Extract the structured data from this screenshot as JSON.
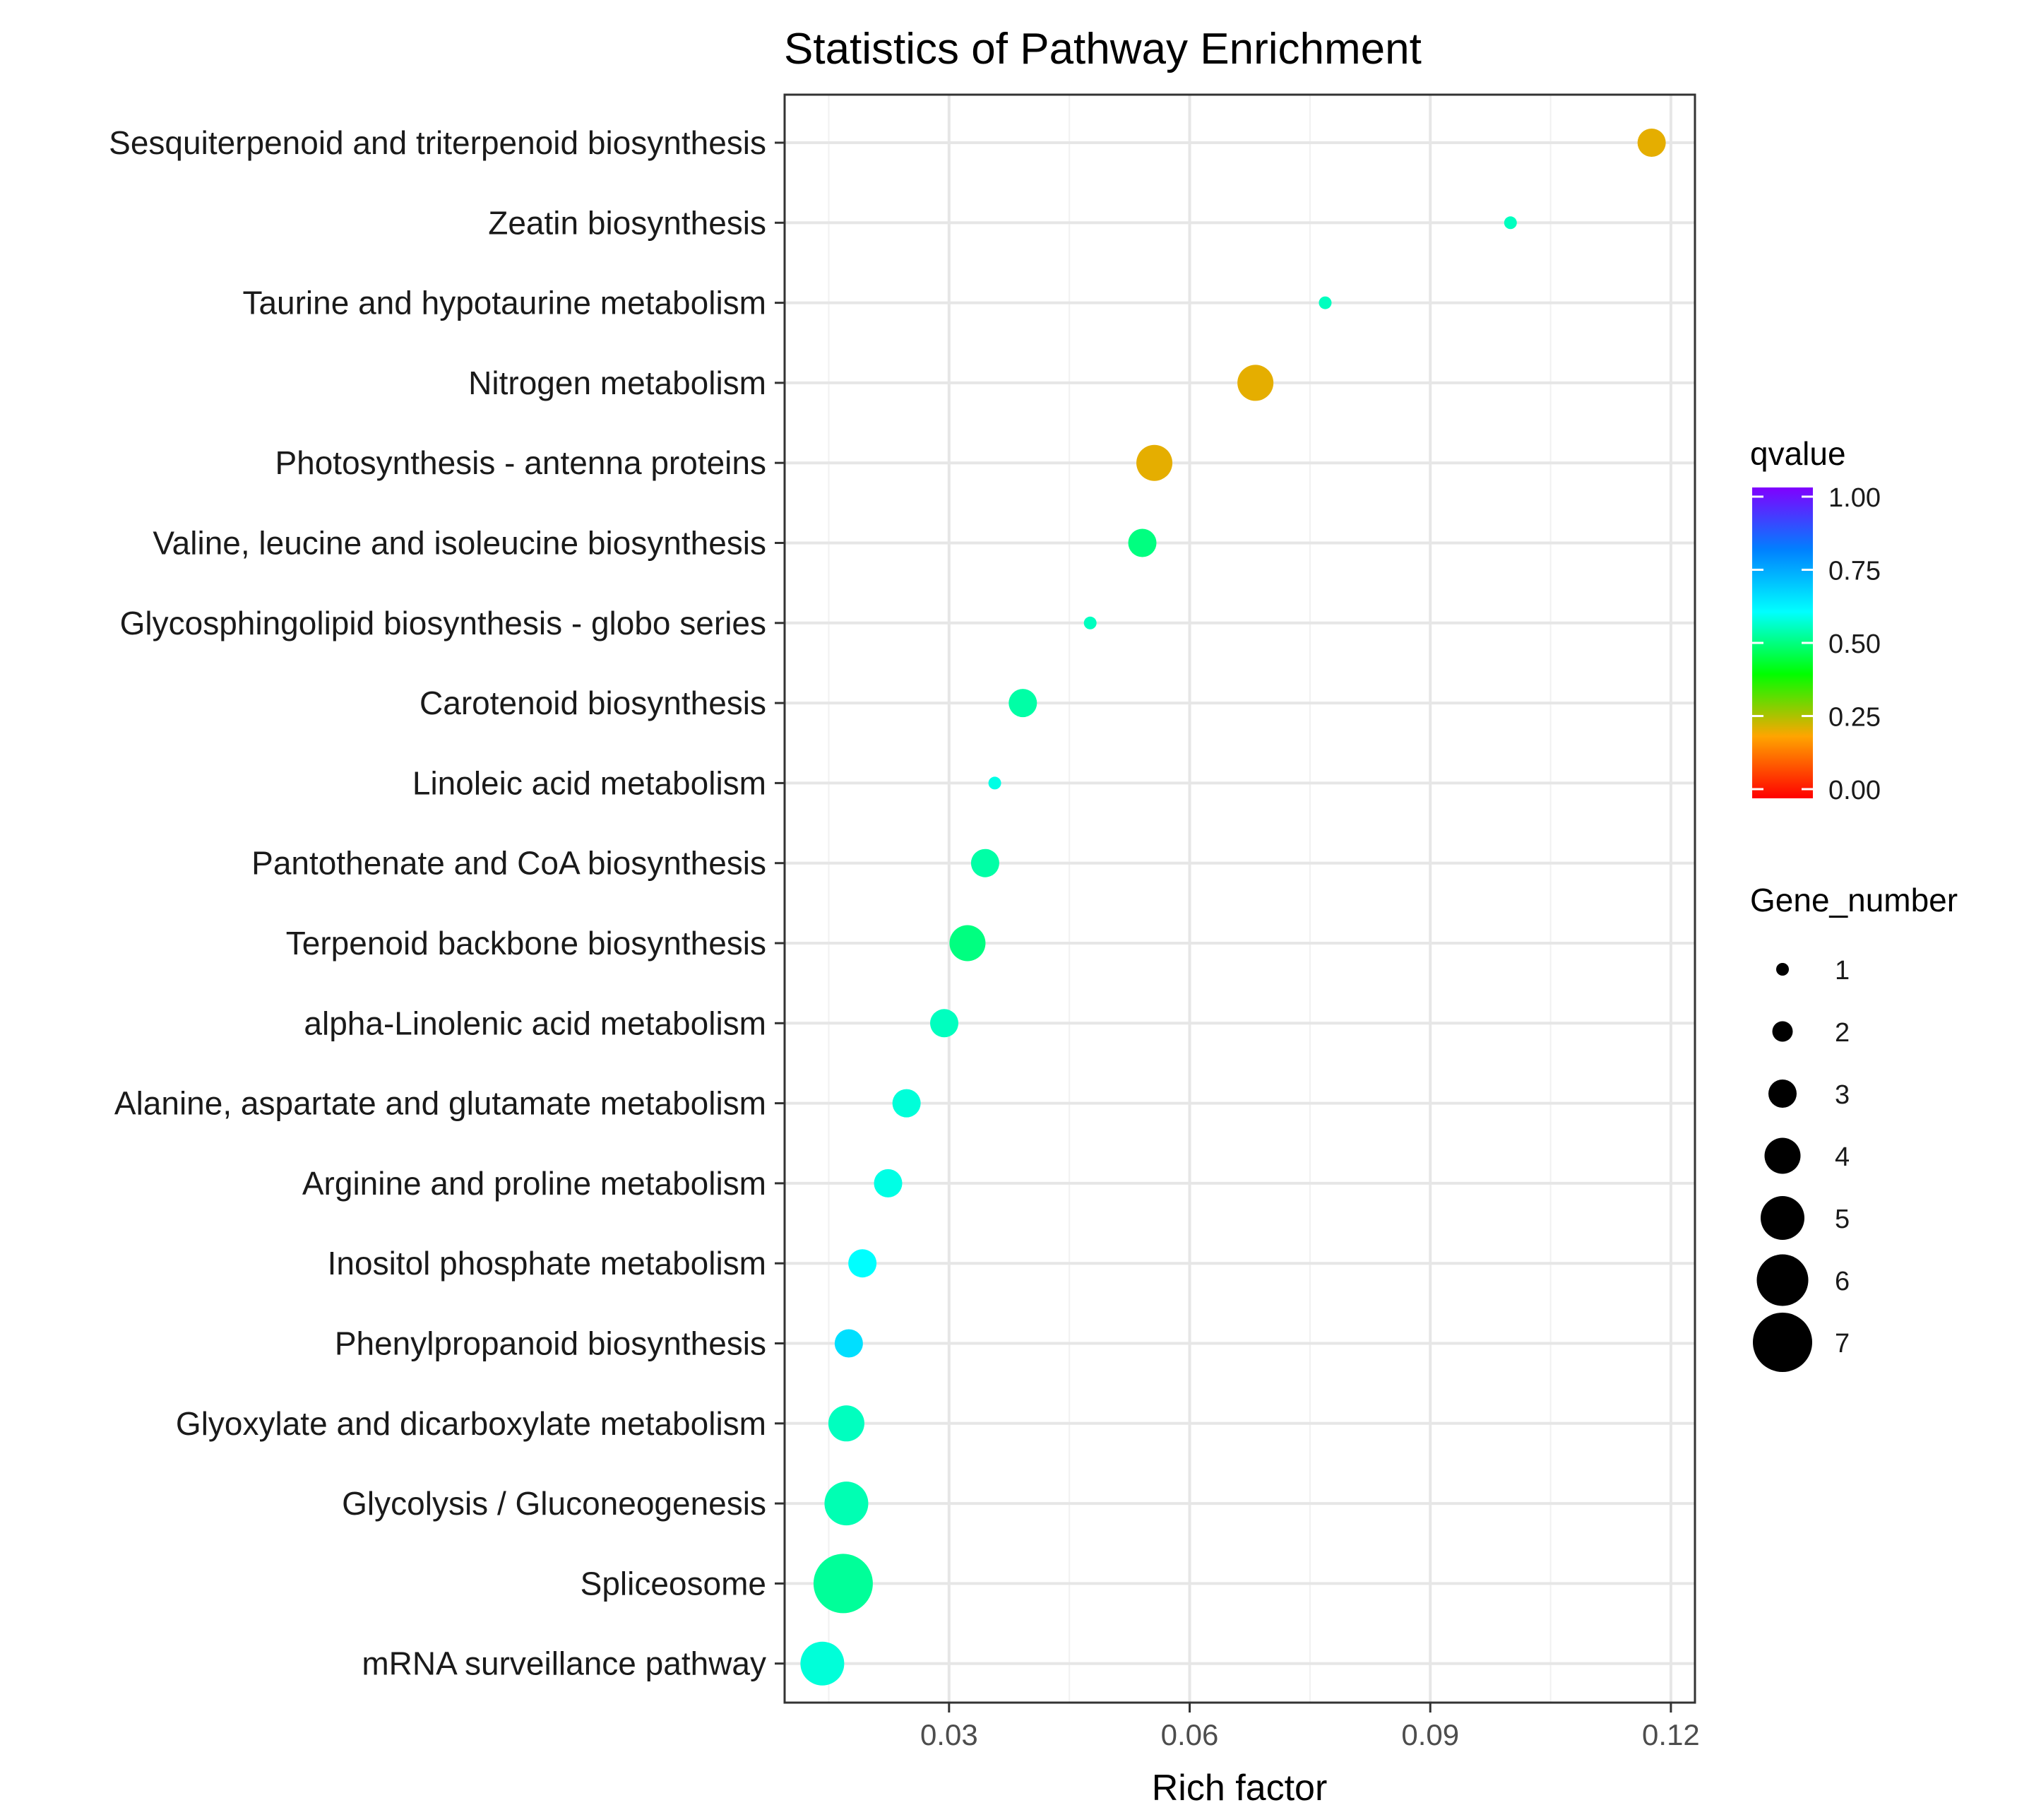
{
  "chart_data": {
    "type": "scatter",
    "title": "Statistics of Pathway Enrichment",
    "xlabel": "Rich factor",
    "ylabel": "",
    "xlim": [
      0.0095,
      0.123
    ],
    "xticks": [
      0.03,
      0.06,
      0.09,
      0.12
    ],
    "xtick_labels": [
      "0.03",
      "0.06",
      "0.09",
      "0.12"
    ],
    "grid": true,
    "categories": [
      "Sesquiterpenoid and triterpenoid biosynthesis",
      "Zeatin biosynthesis",
      "Taurine and hypotaurine metabolism",
      "Nitrogen metabolism",
      "Photosynthesis - antenna proteins",
      "Valine, leucine and isoleucine biosynthesis",
      "Glycosphingolipid biosynthesis - globo series",
      "Carotenoid biosynthesis",
      "Linoleic acid metabolism",
      "Pantothenate and CoA biosynthesis",
      "Terpenoid backbone biosynthesis",
      "alpha-Linolenic acid metabolism",
      "Alanine, aspartate and glutamate metabolism",
      "Arginine and proline metabolism",
      "Inositol phosphate metabolism",
      "Phenylpropanoid biosynthesis",
      "Glyoxylate and dicarboxylate metabolism",
      "Glycolysis / Gluconeogenesis",
      "Spliceosome",
      "mRNA surveillance pathway"
    ],
    "points": [
      {
        "pathway": "Sesquiterpenoid and triterpenoid biosynthesis",
        "rich_factor": 0.1176,
        "gene_number": 3,
        "qvalue": 0.22
      },
      {
        "pathway": "Zeatin biosynthesis",
        "rich_factor": 0.1,
        "gene_number": 1,
        "qvalue": 0.55
      },
      {
        "pathway": "Taurine and hypotaurine metabolism",
        "rich_factor": 0.0769,
        "gene_number": 1,
        "qvalue": 0.55
      },
      {
        "pathway": "Nitrogen metabolism",
        "rich_factor": 0.0682,
        "gene_number": 4,
        "qvalue": 0.22
      },
      {
        "pathway": "Photosynthesis - antenna proteins",
        "rich_factor": 0.0556,
        "gene_number": 4,
        "qvalue": 0.22
      },
      {
        "pathway": "Valine, leucine and isoleucine biosynthesis",
        "rich_factor": 0.0541,
        "gene_number": 3,
        "qvalue": 0.5
      },
      {
        "pathway": "Glycosphingolipid biosynthesis - globo series",
        "rich_factor": 0.0476,
        "gene_number": 1,
        "qvalue": 0.55
      },
      {
        "pathway": "Carotenoid biosynthesis",
        "rich_factor": 0.0392,
        "gene_number": 3,
        "qvalue": 0.53
      },
      {
        "pathway": "Linoleic acid metabolism",
        "rich_factor": 0.0357,
        "gene_number": 1,
        "qvalue": 0.58
      },
      {
        "pathway": "Pantothenate and CoA biosynthesis",
        "rich_factor": 0.0345,
        "gene_number": 3,
        "qvalue": 0.53
      },
      {
        "pathway": "Terpenoid backbone biosynthesis",
        "rich_factor": 0.0323,
        "gene_number": 4,
        "qvalue": 0.5
      },
      {
        "pathway": "alpha-Linolenic acid metabolism",
        "rich_factor": 0.0294,
        "gene_number": 3,
        "qvalue": 0.55
      },
      {
        "pathway": "Alanine, aspartate and glutamate metabolism",
        "rich_factor": 0.0247,
        "gene_number": 3,
        "qvalue": 0.57
      },
      {
        "pathway": "Arginine and proline metabolism",
        "rich_factor": 0.0224,
        "gene_number": 3,
        "qvalue": 0.58
      },
      {
        "pathway": "Inositol phosphate metabolism",
        "rich_factor": 0.0192,
        "gene_number": 3,
        "qvalue": 0.6
      },
      {
        "pathway": "Phenylpropanoid biosynthesis",
        "rich_factor": 0.0175,
        "gene_number": 3,
        "qvalue": 0.65
      },
      {
        "pathway": "Glyoxylate and dicarboxylate metabolism",
        "rich_factor": 0.0172,
        "gene_number": 4,
        "qvalue": 0.55
      },
      {
        "pathway": "Glycolysis / Gluconeogenesis",
        "rich_factor": 0.0172,
        "gene_number": 5,
        "qvalue": 0.54
      },
      {
        "pathway": "Spliceosome",
        "rich_factor": 0.0168,
        "gene_number": 7,
        "qvalue": 0.52
      },
      {
        "pathway": "mRNA surveillance pathway",
        "rich_factor": 0.0142,
        "gene_number": 5,
        "qvalue": 0.57
      }
    ],
    "color_legend": {
      "title": "qvalue",
      "min": 0,
      "max": 1,
      "ticks": [
        1.0,
        0.75,
        0.5,
        0.25,
        0.0
      ],
      "tick_labels": [
        "1.00",
        "0.75",
        "0.50",
        "0.25",
        "0.00"
      ],
      "colors": [
        "#ff0000",
        "#ffa500",
        "#00ff00",
        "#00ffff",
        "#0080ff",
        "#8000ff"
      ]
    },
    "size_legend": {
      "title": "Gene_number",
      "values": [
        1,
        2,
        3,
        4,
        5,
        6,
        7
      ],
      "labels": [
        "1",
        "2",
        "3",
        "4",
        "5",
        "6",
        "7"
      ],
      "color": "#000000"
    }
  }
}
